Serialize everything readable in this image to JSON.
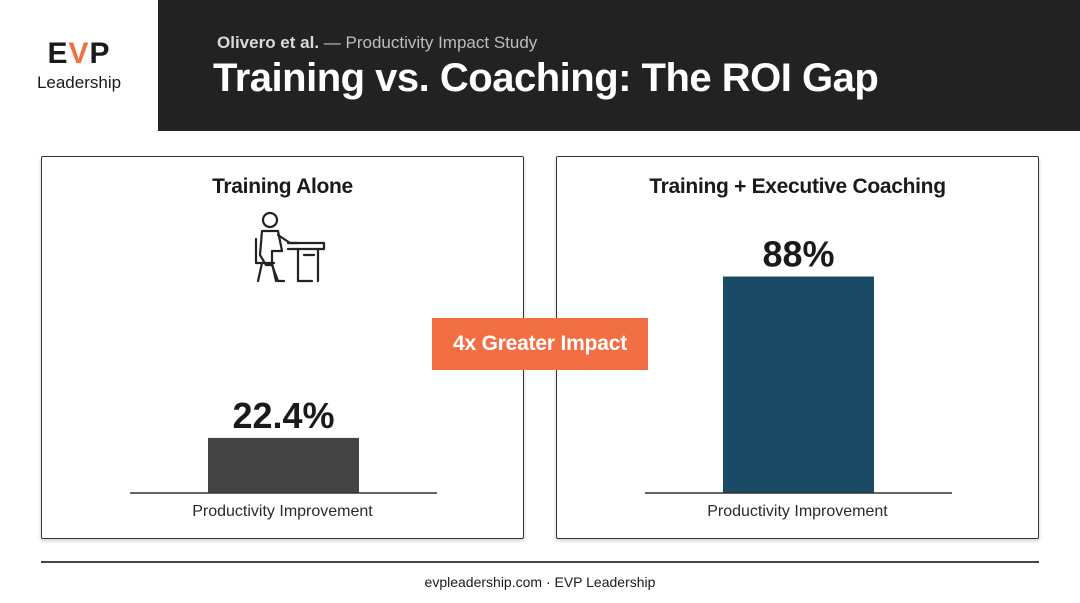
{
  "brand": {
    "logo_prefix": "E",
    "logo_accent": "V",
    "logo_suffix": "P",
    "logo_sub": "Leadership",
    "accent_color": "#f26f43"
  },
  "header": {
    "authors": "Olivero et al.",
    "separator": " — ",
    "study": "Productivity Impact Study",
    "title": "Training vs. Coaching: The ROI Gap"
  },
  "badge": {
    "label": "4x Greater Impact"
  },
  "footer": {
    "text": "evpleadership.com · EVP Leadership"
  },
  "chart_data": [
    {
      "type": "bar",
      "title": "Training Alone",
      "categories": [
        ""
      ],
      "values": [
        22.4
      ],
      "value_labels": [
        "22.4%"
      ],
      "xlabel": "Productivity Improvement",
      "ylim": [
        0,
        100
      ],
      "bar_color": "#444444",
      "icon": "person-at-desk-icon"
    },
    {
      "type": "bar",
      "title": "Training + Executive Coaching",
      "categories": [
        ""
      ],
      "values": [
        88
      ],
      "value_labels": [
        "88%"
      ],
      "xlabel": "Productivity Improvement",
      "ylim": [
        0,
        100
      ],
      "bar_color": "#1b4a67"
    }
  ]
}
